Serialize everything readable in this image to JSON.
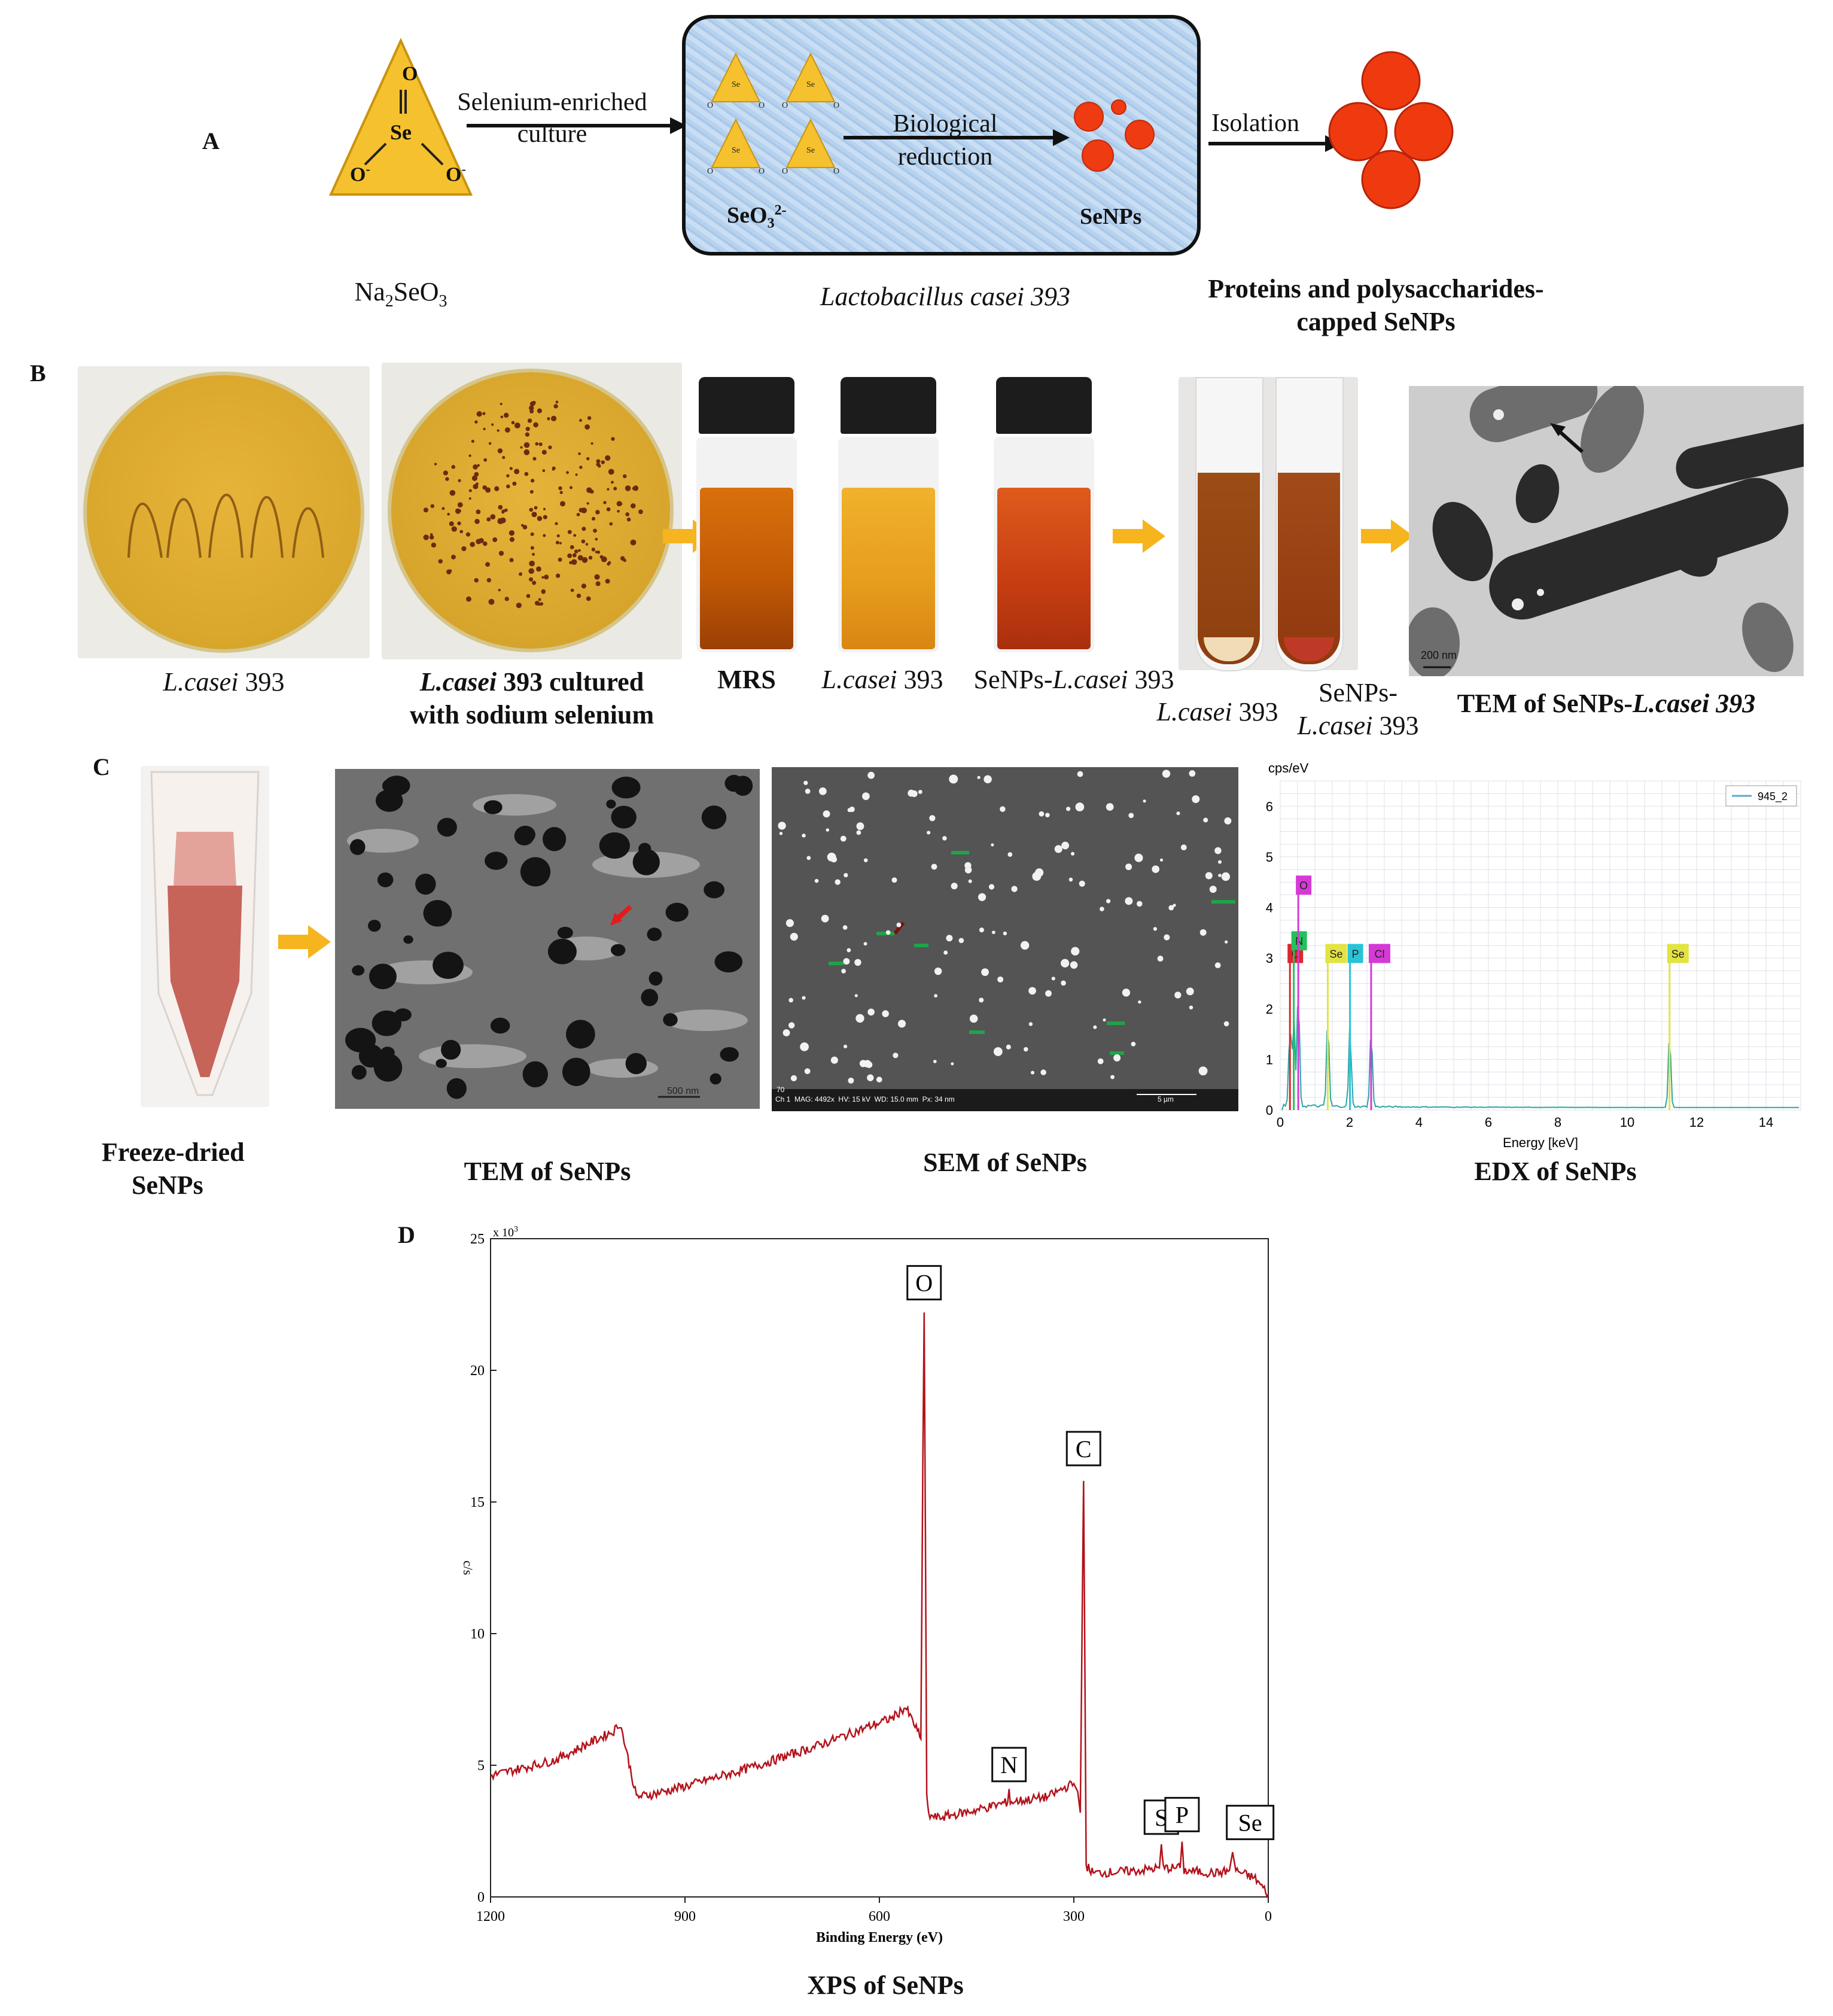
{
  "panels": {
    "a": "A",
    "b": "B",
    "c": "C",
    "d": "D"
  },
  "panel_a": {
    "na_label_main": "Na",
    "na_sub1": "2",
    "na_label_mid": "SeO",
    "na_sub2": "3",
    "se_o_top": "O",
    "se_center": "Se",
    "se_o_left": "O",
    "se_o_right": "O",
    "se_charge": "-",
    "arrow1_line1": "Selenium-enriched",
    "arrow1_line2": "culture",
    "arrow2_line1": "Biological",
    "arrow2_line2": "reduction",
    "seo3_label": "SeO",
    "seo3_sub": "3",
    "seo3_sup": "2-",
    "senps_label": "SeNPs",
    "box_caption": "Lactobacillus casei 393",
    "arrow3_label": "Isolation",
    "right_caption_1": "Proteins and polysaccharides-",
    "right_caption_2": "capped SeNPs"
  },
  "panel_b": {
    "plate1_caption_i": "L.casei",
    "plate1_caption_n": " 393",
    "plate2_caption_i": "L.casei",
    "plate2_caption_n": " 393 cultured",
    "plate2_caption_2": "with sodium selenium",
    "vial1": "MRS",
    "vial2_i": "L.casei",
    "vial2_n": " 393",
    "vial3_n": "SeNPs-",
    "vial3_i": "L.casei",
    "vial3_n2": " 393",
    "tube1_i": "L.casei",
    "tube1_n": " 393",
    "tube2_n": "SeNPs-",
    "tube2_i": "L.casei",
    "tube2_n2": " 393",
    "tem_caption_n": "TEM of SeNPs-",
    "tem_caption_i": "L.casei 393",
    "tem_scale": "200 nm",
    "colors": {
      "plate": "#d9a72b",
      "vial1": "#c25a06",
      "vial2": "#e79c1c",
      "vial3": "#c63d12",
      "arrow": "#f5b21c"
    }
  },
  "panel_c": {
    "freeze_caption_1": "Freeze-dried",
    "freeze_caption_2": "SeNPs",
    "tem_caption": "TEM of SeNPs",
    "tem_scale": "500 nm",
    "sem_caption": "SEM of SeNPs",
    "sem_footer": [
      "Ch 1",
      "MAG: 4492x",
      "HV: 15 kV",
      "WD: 15.0 mm",
      "Px: 34 nm"
    ],
    "sem_top_id": "70",
    "sem_scale": "5 µm",
    "edx_caption": "EDX of SeNPs"
  },
  "edx_chart": {
    "type": "line",
    "y_unit": "cps/eV",
    "xlabel": "Energy [keV]",
    "legend": "945_2",
    "xlim": [
      0,
      15
    ],
    "ylim": [
      0,
      6.5
    ],
    "x_ticks": [
      "0",
      "2",
      "4",
      "6",
      "8",
      "10",
      "12",
      "14"
    ],
    "y_ticks": [
      "0",
      "1",
      "2",
      "3",
      "4",
      "5",
      "6"
    ],
    "peaks": [
      {
        "x": 0.28,
        "y": 2.8,
        "label": "C",
        "color": "#e0242b"
      },
      {
        "x": 0.39,
        "y": 3.1,
        "label": "N",
        "color": "#22c25a"
      },
      {
        "x": 0.52,
        "y": 4.1,
        "label": "O",
        "color": "#d63ad6"
      },
      {
        "x": 1.37,
        "y": 3.2,
        "label": "Se",
        "color": "#e3e342"
      },
      {
        "x": 2.01,
        "y": 2.9,
        "label": "P",
        "color": "#27c4d8"
      },
      {
        "x": 2.62,
        "y": 2.8,
        "label": "Cl",
        "color": "#d63ad6"
      },
      {
        "x": 11.22,
        "y": 2.7,
        "label": "Se",
        "color": "#e3e342"
      }
    ],
    "labels_shown": [
      "C",
      "N",
      "O",
      "Se",
      "P",
      "Cl",
      "Se"
    ]
  },
  "xps_chart": {
    "type": "line",
    "xlabel": "Binding Energy (eV)",
    "ylabel": "c/s",
    "y_multiplier": "x 10",
    "y_multiplier_exp": "3",
    "xlim": [
      1200,
      0
    ],
    "ylim": [
      0,
      25
    ],
    "x_ticks": [
      "1200",
      "900",
      "600",
      "300",
      "0"
    ],
    "y_ticks": [
      "0",
      "5",
      "10",
      "15",
      "20",
      "25"
    ],
    "caption": "XPS of SeNPs",
    "peak_labels": [
      {
        "text": "O",
        "x": 531,
        "y": 22.2
      },
      {
        "text": "C",
        "x": 285,
        "y": 15.8
      },
      {
        "text": "N",
        "x": 400,
        "y": 4.1
      },
      {
        "text": "S",
        "x": 165,
        "y": 2.0
      },
      {
        "text": "P",
        "x": 133,
        "y": 2.1
      },
      {
        "text": "Se",
        "x": 55,
        "y": 1.7
      }
    ],
    "series": [
      {
        "name": "",
        "color": "#b3121b",
        "points": [
          [
            1200,
            4.6
          ],
          [
            1100,
            5.2
          ],
          [
            1010,
            6.3
          ],
          [
            1000,
            6.6
          ],
          [
            990,
            5.5
          ],
          [
            975,
            3.8
          ],
          [
            950,
            3.9
          ],
          [
            900,
            4.2
          ],
          [
            800,
            4.9
          ],
          [
            700,
            5.7
          ],
          [
            580,
            6.8
          ],
          [
            560,
            7.2
          ],
          [
            545,
            6.5
          ],
          [
            536,
            6.0
          ],
          [
            533,
            16.5
          ],
          [
            531,
            22.2
          ],
          [
            529,
            13.8
          ],
          [
            527,
            3.9
          ],
          [
            524,
            3.1
          ],
          [
            510,
            3.0
          ],
          [
            450,
            3.3
          ],
          [
            402,
            3.6
          ],
          [
            400,
            4.1
          ],
          [
            398,
            3.6
          ],
          [
            340,
            3.8
          ],
          [
            310,
            4.2
          ],
          [
            300,
            4.3
          ],
          [
            294,
            4.0
          ],
          [
            290,
            3.2
          ],
          [
            287,
            11.0
          ],
          [
            285,
            15.8
          ],
          [
            283,
            9.0
          ],
          [
            281,
            1.2
          ],
          [
            270,
            0.9
          ],
          [
            200,
            1.0
          ],
          [
            168,
            1.1
          ],
          [
            165,
            2.0
          ],
          [
            162,
            1.1
          ],
          [
            136,
            1.1
          ],
          [
            133,
            2.1
          ],
          [
            130,
            1.0
          ],
          [
            80,
            0.9
          ],
          [
            60,
            1.0
          ],
          [
            55,
            1.7
          ],
          [
            50,
            1.0
          ],
          [
            20,
            0.7
          ],
          [
            0,
            0.1
          ]
        ]
      }
    ]
  }
}
